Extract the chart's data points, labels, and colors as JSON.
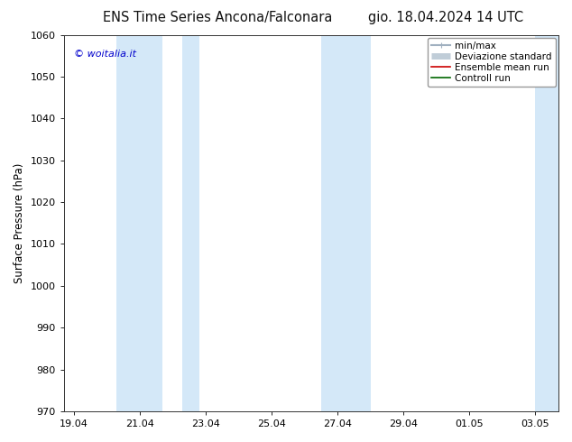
{
  "title_left": "ENS Time Series Ancona/Falconara",
  "title_right": "gio. 18.04.2024 14 UTC",
  "ylabel": "Surface Pressure (hPa)",
  "ylim": [
    970,
    1060
  ],
  "yticks": [
    970,
    980,
    990,
    1000,
    1010,
    1020,
    1030,
    1040,
    1050,
    1060
  ],
  "x_labels": [
    "19.04",
    "21.04",
    "23.04",
    "25.04",
    "27.04",
    "29.04",
    "01.05",
    "03.05"
  ],
  "x_positions": [
    0,
    2,
    4,
    6,
    8,
    10,
    12,
    14
  ],
  "xlim": [
    -0.3,
    14.7
  ],
  "shaded_regions": [
    {
      "x_start": 1.3,
      "x_end": 2.7
    },
    {
      "x_start": 3.3,
      "x_end": 3.8
    },
    {
      "x_start": 7.5,
      "x_end": 9.0
    },
    {
      "x_start": 14.0,
      "x_end": 14.7
    }
  ],
  "shaded_color": "#d4e8f8",
  "watermark_text": "© woitalia.it",
  "watermark_color": "#0000cc",
  "legend_items": [
    {
      "label": "min/max",
      "color": "#a0b0c0",
      "lw": 1.5
    },
    {
      "label": "Deviazione standard",
      "color": "#c0cdd8",
      "lw": 5
    },
    {
      "label": "Ensemble mean run",
      "color": "#cc0000",
      "lw": 1.2
    },
    {
      "label": "Controll run",
      "color": "#006600",
      "lw": 1.2
    }
  ],
  "background_color": "#ffffff",
  "title_fontsize": 10.5,
  "axis_label_fontsize": 8.5,
  "tick_fontsize": 8,
  "legend_fontsize": 7.5,
  "watermark_fontsize": 8
}
